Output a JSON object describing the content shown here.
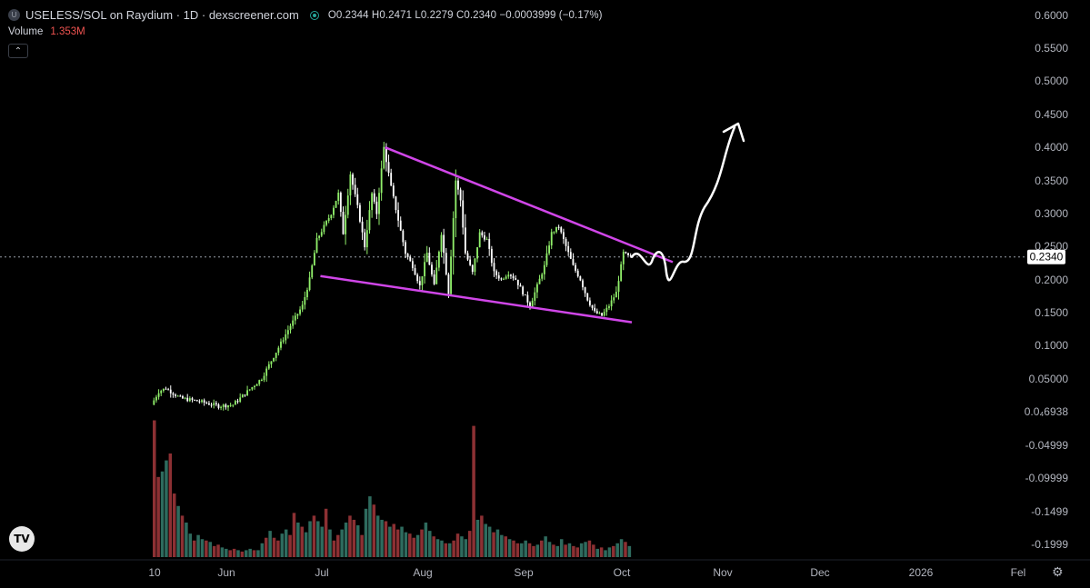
{
  "header": {
    "symbol_icon": "U",
    "title": "USELESS/SOL on Raydium · 1D · dexscreener.com",
    "ohlc": "O0.2344 H0.2471 L0.2279 C0.2340 −0.0003999 (−0.17%)",
    "volume_label": "Volume",
    "volume_value": "1.353M",
    "collapse_icon": "chevron-up-icon"
  },
  "last_price_label": "0.2340",
  "colors": {
    "background": "#000000",
    "up": "#90ee6a",
    "down": "#ffffff",
    "volume_up": "#2e6b5e",
    "volume_down": "#8c3033",
    "trendline": "#d046e8",
    "arrow": "#ffffff",
    "text": "#d1d4dc"
  },
  "chart_data": {
    "type": "candlestick",
    "y_axis_ticks": [
      "0.6000",
      "0.5500",
      "0.5000",
      "0.4500",
      "0.4000",
      "0.3500",
      "0.3000",
      "0.2500",
      "0.2000",
      "0.1500",
      "0.1000",
      "0.05000",
      "0.0₄6938",
      "-0.04999",
      "-0.09999",
      "-0.1499",
      "-0.1999"
    ],
    "x_axis_ticks": [
      "10",
      "Jun",
      "Jul",
      "Aug",
      "Sep",
      "Oct",
      "Nov",
      "Dec",
      "2026",
      "Fel"
    ],
    "ylim": [
      -0.22,
      0.62
    ],
    "last_price": 0.234,
    "price_path_points": [
      [
        0,
        0.01
      ],
      [
        3,
        0.03
      ],
      [
        6,
        0.035
      ],
      [
        12,
        0.02
      ],
      [
        20,
        0.015
      ],
      [
        28,
        0.008
      ],
      [
        34,
        0.01
      ],
      [
        40,
        0.03
      ],
      [
        46,
        0.05
      ],
      [
        52,
        0.09
      ],
      [
        58,
        0.13
      ],
      [
        63,
        0.16
      ],
      [
        66,
        0.2
      ],
      [
        69,
        0.26
      ],
      [
        72,
        0.28
      ],
      [
        75,
        0.3
      ],
      [
        78,
        0.33
      ],
      [
        80,
        0.27
      ],
      [
        83,
        0.36
      ],
      [
        86,
        0.31
      ],
      [
        89,
        0.25
      ],
      [
        92,
        0.33
      ],
      [
        94,
        0.3
      ],
      [
        97,
        0.4
      ],
      [
        100,
        0.34
      ],
      [
        103,
        0.29
      ],
      [
        106,
        0.24
      ],
      [
        109,
        0.22
      ],
      [
        112,
        0.19
      ],
      [
        115,
        0.24
      ],
      [
        118,
        0.19
      ],
      [
        121,
        0.27
      ],
      [
        124,
        0.18
      ],
      [
        127,
        0.35
      ],
      [
        129,
        0.32
      ],
      [
        131,
        0.24
      ],
      [
        134,
        0.21
      ],
      [
        137,
        0.27
      ],
      [
        140,
        0.26
      ],
      [
        143,
        0.21
      ],
      [
        146,
        0.2
      ],
      [
        149,
        0.21
      ],
      [
        152,
        0.2
      ],
      [
        155,
        0.18
      ],
      [
        158,
        0.16
      ],
      [
        161,
        0.19
      ],
      [
        164,
        0.22
      ],
      [
        167,
        0.27
      ],
      [
        170,
        0.28
      ],
      [
        173,
        0.25
      ],
      [
        176,
        0.22
      ],
      [
        179,
        0.2
      ],
      [
        182,
        0.17
      ],
      [
        185,
        0.15
      ],
      [
        188,
        0.145
      ],
      [
        191,
        0.16
      ],
      [
        194,
        0.18
      ],
      [
        197,
        0.24
      ],
      [
        199,
        0.2344
      ],
      [
        200,
        0.234
      ]
    ],
    "volume": {
      "max_label": "",
      "bars_relative": [
        0.99,
        0.58,
        0.62,
        0.7,
        0.75,
        0.46,
        0.37,
        0.3,
        0.25,
        0.17,
        0.12,
        0.16,
        0.13,
        0.12,
        0.11,
        0.08,
        0.09,
        0.07,
        0.06,
        0.05,
        0.06,
        0.05,
        0.04,
        0.05,
        0.06,
        0.05,
        0.05,
        0.1,
        0.14,
        0.19,
        0.14,
        0.12,
        0.17,
        0.2,
        0.16,
        0.32,
        0.25,
        0.22,
        0.18,
        0.26,
        0.3,
        0.26,
        0.22,
        0.35,
        0.2,
        0.12,
        0.16,
        0.2,
        0.25,
        0.3,
        0.27,
        0.23,
        0.16,
        0.35,
        0.44,
        0.38,
        0.3,
        0.27,
        0.26,
        0.22,
        0.24,
        0.2,
        0.22,
        0.18,
        0.17,
        0.14,
        0.16,
        0.2,
        0.25,
        0.19,
        0.15,
        0.13,
        0.12,
        0.1,
        0.1,
        0.12,
        0.17,
        0.15,
        0.13,
        0.19,
        0.95,
        0.27,
        0.3,
        0.24,
        0.22,
        0.18,
        0.2,
        0.16,
        0.15,
        0.13,
        0.12,
        0.1,
        0.1,
        0.12,
        0.1,
        0.08,
        0.09,
        0.12,
        0.15,
        0.11,
        0.09,
        0.08,
        0.13,
        0.09,
        0.1,
        0.08,
        0.07,
        0.1,
        0.11,
        0.12,
        0.09,
        0.06,
        0.07,
        0.05,
        0.07,
        0.08,
        0.1,
        0.13,
        0.11,
        0.08
      ]
    },
    "annotations": [
      {
        "type": "trendline",
        "label": "upper",
        "from": [
          97,
          0.4
        ],
        "to": [
          200,
          0.24
        ]
      },
      {
        "type": "trendline",
        "label": "lower",
        "from": [
          70,
          0.205
        ],
        "to": [
          200,
          0.135
        ]
      },
      {
        "type": "hand-drawn-arrow",
        "label": "projection",
        "points": [
          [
            200,
            0.234
          ],
          [
            206,
            0.215
          ],
          [
            211,
            0.19
          ],
          [
            215,
            0.23
          ],
          [
            222,
            0.3
          ],
          [
            229,
            0.38
          ],
          [
            236,
            0.43
          ]
        ]
      }
    ]
  }
}
